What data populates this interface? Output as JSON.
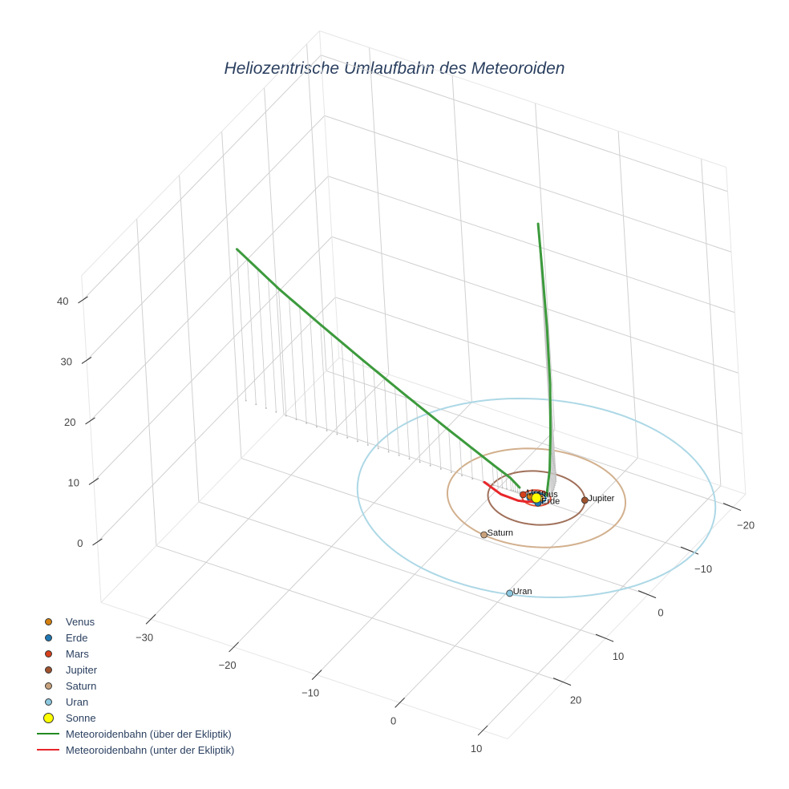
{
  "title": "Heliozentrische Umlaufbahn des Meteoroiden",
  "legend": [
    {
      "label": "Venus",
      "type": "marker",
      "color": "#d4800e",
      "size": 9
    },
    {
      "label": "Erde",
      "type": "marker",
      "color": "#1f77b4",
      "size": 9
    },
    {
      "label": "Mars",
      "type": "marker",
      "color": "#d6401b",
      "size": 9
    },
    {
      "label": "Jupiter",
      "type": "marker",
      "color": "#a0522d",
      "size": 9
    },
    {
      "label": "Saturn",
      "type": "marker",
      "color": "#c8a27c",
      "size": 9
    },
    {
      "label": "Uran",
      "type": "marker",
      "color": "#8cc8e0",
      "size": 9
    },
    {
      "label": "Sonne",
      "type": "marker",
      "color": "#ffff00",
      "size": 13
    },
    {
      "label": "Meteoroidenbahn (über der Ekliptik)",
      "type": "line",
      "color": "#228b22"
    },
    {
      "label": "Meteoroidenbahn (unter der Ekliptik)",
      "type": "line",
      "color": "#e8262a"
    }
  ],
  "chart_data": {
    "type": "scatter3d",
    "title": "Heliozentrische Umlaufbahn des Meteoroiden",
    "axes": {
      "x": {
        "label": "",
        "ticks": [
          -30,
          -20,
          -10,
          0,
          10
        ],
        "range": [
          -36,
          13
        ]
      },
      "y": {
        "label": "",
        "ticks": [
          -20,
          -10,
          0,
          10,
          20
        ],
        "range": [
          -23,
          33
        ]
      },
      "z": {
        "label": "",
        "ticks": [
          0,
          10,
          20,
          30,
          40
        ],
        "range": [
          -10,
          44
        ]
      }
    },
    "grid": true,
    "legend_position": "bottom-left",
    "sun": {
      "name": "Sonne",
      "x": 0,
      "y": 0,
      "z": 0,
      "color": "#ffff00"
    },
    "planets": [
      {
        "name": "Venus",
        "a": 0.72,
        "x": -0.7,
        "y": 0.1,
        "z": 0,
        "color": "#d4800e",
        "orbit_color": "#d4800e"
      },
      {
        "name": "Erde",
        "a": 1.0,
        "x": 0.6,
        "y": 0.8,
        "z": 0,
        "color": "#1f77b4",
        "orbit_color": "#1f77b4"
      },
      {
        "name": "Mars",
        "a": 1.52,
        "x": -1.5,
        "y": 0.2,
        "z": 0,
        "color": "#d6401b",
        "orbit_color": "#e2553a"
      },
      {
        "name": "Jupiter",
        "a": 5.2,
        "x": 4.6,
        "y": -2.4,
        "z": 0,
        "color": "#a0522d",
        "orbit_color": "#a0705a"
      },
      {
        "name": "Saturn",
        "a": 9.55,
        "x": -1.5,
        "y": 9.4,
        "z": 0,
        "color": "#c8a27c",
        "orbit_color": "#d2b08e"
      },
      {
        "name": "Uran",
        "a": 19.2,
        "x": 6.0,
        "y": 18.0,
        "z": 0,
        "color": "#8cc8e0",
        "orbit_color": "#add8e6"
      }
    ],
    "meteoroid_track": {
      "above_ecliptic_color": "#3c9a3c",
      "below_ecliptic_color": "#e8262a",
      "outbound_branch": [
        [
          -35,
          0,
          25
        ],
        [
          -30,
          0.3,
          21
        ],
        [
          -25,
          0.5,
          17.5
        ],
        [
          -20,
          0.6,
          14
        ],
        [
          -15,
          0.6,
          10.5
        ],
        [
          -10,
          0.5,
          7
        ],
        [
          -5,
          0.3,
          3.5
        ],
        [
          -3,
          0.1,
          2
        ],
        [
          -2,
          0,
          0.8
        ]
      ],
      "below_segment": [
        [
          -6,
          0.5,
          0.2
        ],
        [
          -4,
          0.6,
          -0.8
        ],
        [
          -2,
          0.5,
          -1
        ],
        [
          -1,
          0.4,
          -0.8
        ],
        [
          0.5,
          0.2,
          -0.2
        ]
      ],
      "inbound_branch": [
        [
          1,
          -0.5,
          0.5
        ],
        [
          1,
          -1.5,
          4
        ],
        [
          0.8,
          -2.5,
          9
        ],
        [
          0.3,
          -4,
          16
        ],
        [
          -0.5,
          -5.5,
          24
        ],
        [
          -1.5,
          -7,
          32
        ],
        [
          -2.5,
          -8.5,
          38
        ]
      ],
      "drop_lines": true
    }
  }
}
